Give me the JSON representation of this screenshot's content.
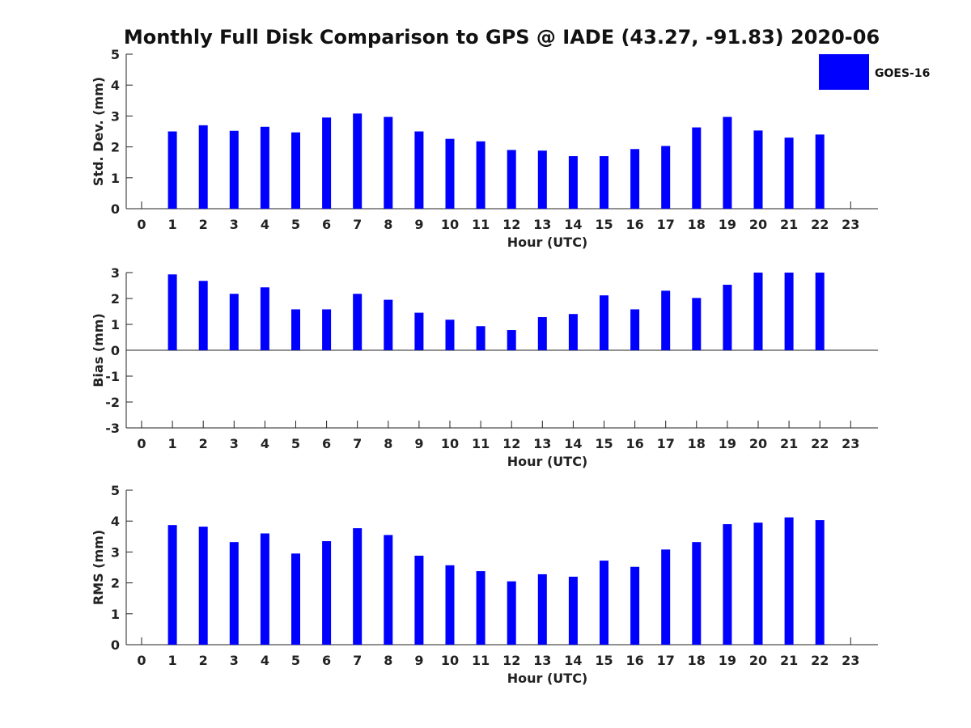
{
  "title": "Monthly Full Disk Comparison to GPS @ IADE (43.27, -91.83) 2020-06",
  "legend": {
    "label": "GOES-16",
    "color": "#0000ff",
    "placement": "top-right"
  },
  "chart_data": [
    {
      "type": "bar",
      "title": "",
      "xlabel": "Hour (UTC)",
      "ylabel": "Std. Dev. (mm)",
      "ylim": [
        0,
        5
      ],
      "yticks": [
        0,
        1,
        2,
        3,
        4,
        5
      ],
      "xticks": [
        0,
        1,
        2,
        3,
        4,
        5,
        6,
        7,
        8,
        9,
        10,
        11,
        12,
        13,
        14,
        15,
        16,
        17,
        18,
        19,
        20,
        21,
        22,
        23
      ],
      "series": [
        {
          "name": "GOES-16",
          "x": [
            1,
            2,
            3,
            4,
            5,
            6,
            7,
            8,
            9,
            10,
            11,
            12,
            13,
            14,
            15,
            16,
            17,
            18,
            19,
            20,
            21,
            22
          ],
          "values": [
            2.5,
            2.7,
            2.52,
            2.65,
            2.47,
            2.95,
            3.08,
            2.97,
            2.5,
            2.26,
            2.18,
            1.9,
            1.88,
            1.7,
            1.7,
            1.93,
            2.03,
            2.63,
            2.97,
            2.53,
            2.3,
            2.4
          ]
        }
      ]
    },
    {
      "type": "bar",
      "title": "",
      "xlabel": "Hour (UTC)",
      "ylabel": "Bias (mm)",
      "ylim": [
        -3,
        3
      ],
      "yticks": [
        -3,
        -2,
        -1,
        0,
        1,
        2,
        3
      ],
      "xticks": [
        0,
        1,
        2,
        3,
        4,
        5,
        6,
        7,
        8,
        9,
        10,
        11,
        12,
        13,
        14,
        15,
        16,
        17,
        18,
        19,
        20,
        21,
        22,
        23
      ],
      "zero_line": true,
      "series": [
        {
          "name": "GOES-16",
          "x": [
            1,
            2,
            3,
            4,
            5,
            6,
            7,
            8,
            9,
            10,
            11,
            12,
            13,
            14,
            15,
            16,
            17,
            18,
            19,
            20,
            21,
            22
          ],
          "values": [
            2.93,
            2.68,
            2.18,
            2.43,
            1.58,
            1.58,
            2.18,
            1.95,
            1.45,
            1.18,
            0.93,
            0.78,
            1.28,
            1.4,
            2.12,
            1.58,
            2.3,
            2.02,
            2.53,
            3.0,
            3.0,
            3.0
          ]
        }
      ]
    },
    {
      "type": "bar",
      "title": "",
      "xlabel": "Hour (UTC)",
      "ylabel": "RMS (mm)",
      "ylim": [
        0,
        5
      ],
      "yticks": [
        0,
        1,
        2,
        3,
        4,
        5
      ],
      "xticks": [
        0,
        1,
        2,
        3,
        4,
        5,
        6,
        7,
        8,
        9,
        10,
        11,
        12,
        13,
        14,
        15,
        16,
        17,
        18,
        19,
        20,
        21,
        22,
        23
      ],
      "series": [
        {
          "name": "GOES-16",
          "x": [
            1,
            2,
            3,
            4,
            5,
            6,
            7,
            8,
            9,
            10,
            11,
            12,
            13,
            14,
            15,
            16,
            17,
            18,
            19,
            20,
            21,
            22
          ],
          "values": [
            3.87,
            3.82,
            3.32,
            3.6,
            2.95,
            3.35,
            3.77,
            3.55,
            2.88,
            2.57,
            2.38,
            2.05,
            2.28,
            2.2,
            2.72,
            2.52,
            3.08,
            3.32,
            3.9,
            3.95,
            4.12,
            4.03
          ]
        }
      ]
    }
  ]
}
